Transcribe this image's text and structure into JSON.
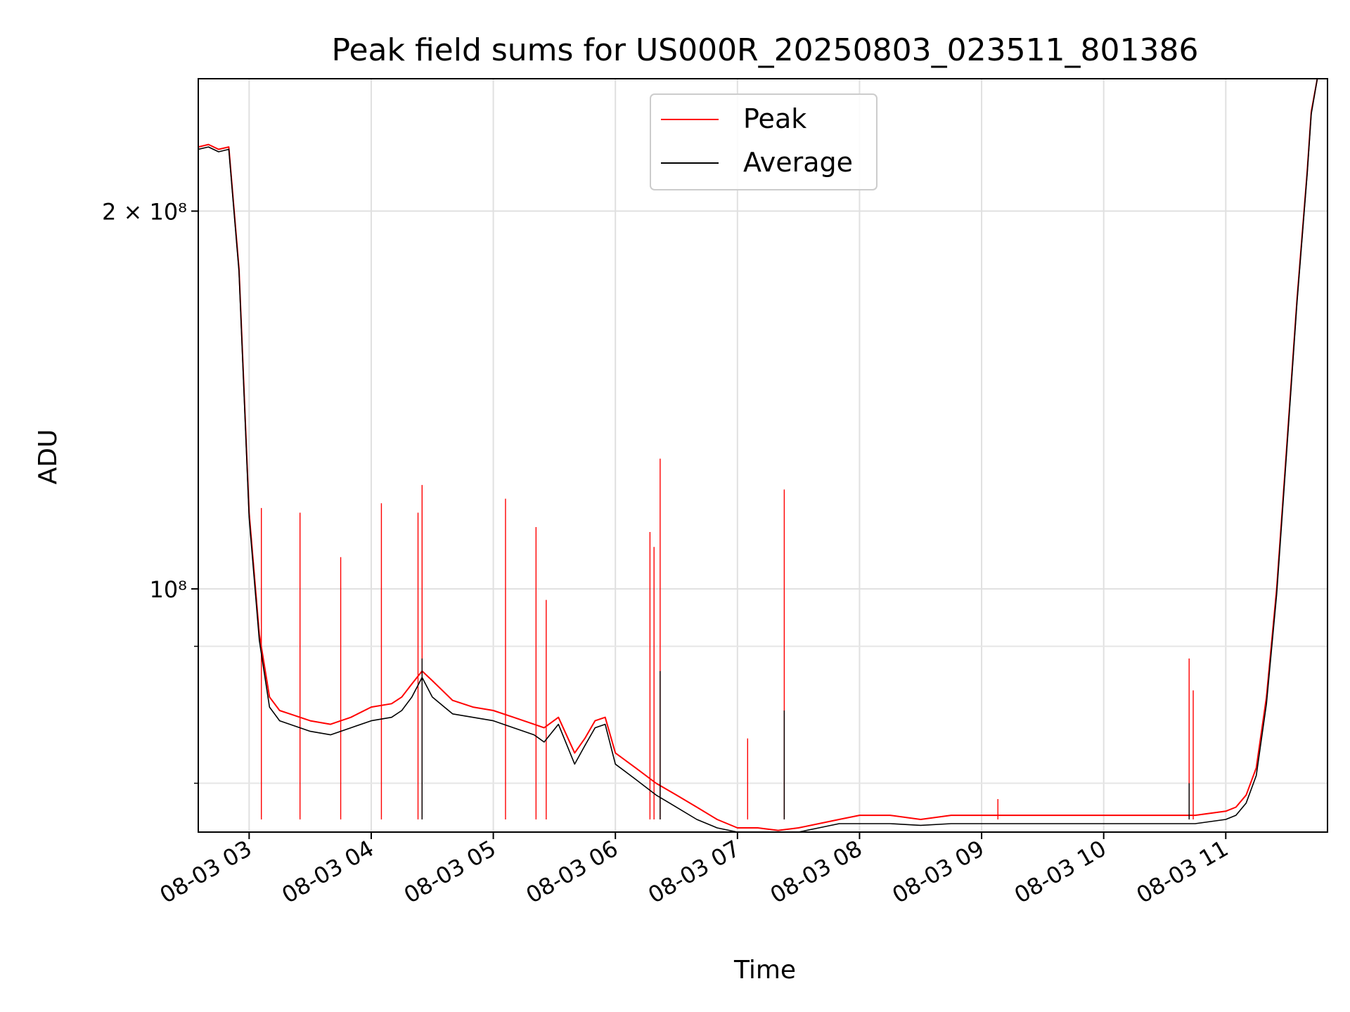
{
  "chart_data": {
    "type": "line",
    "title": "Peak field sums for US000R_20250803_023511_801386",
    "xlabel": "Time",
    "ylabel": "ADU",
    "y_scale": "log",
    "xlim": [
      "2025-08-03 02:35",
      "2025-08-03 11:50"
    ],
    "ylim": [
      64000000,
      255000000
    ],
    "x_ticks": [
      "08-03 03",
      "08-03 04",
      "08-03 05",
      "08-03 06",
      "08-03 07",
      "08-03 08",
      "08-03 09",
      "08-03 10",
      "08-03 11"
    ],
    "y_ticks": [
      "2 × 10⁸",
      "10⁸"
    ],
    "grid": true,
    "legend": {
      "placement": "top-center",
      "entries": [
        "Peak",
        "Average"
      ]
    },
    "series": [
      {
        "name": "Peak",
        "color": "#ff0000",
        "x": [
          "2025-08-03 02:35",
          "2025-08-03 02:40",
          "2025-08-03 02:45",
          "2025-08-03 02:50",
          "2025-08-03 02:55",
          "2025-08-03 03:00",
          "2025-08-03 03:05",
          "2025-08-03 03:10",
          "2025-08-03 03:15",
          "2025-08-03 03:20",
          "2025-08-03 03:30",
          "2025-08-03 03:40",
          "2025-08-03 03:50",
          "2025-08-03 04:00",
          "2025-08-03 04:10",
          "2025-08-03 04:15",
          "2025-08-03 04:20",
          "2025-08-03 04:25",
          "2025-08-03 04:30",
          "2025-08-03 04:40",
          "2025-08-03 04:50",
          "2025-08-03 05:00",
          "2025-08-03 05:10",
          "2025-08-03 05:20",
          "2025-08-03 05:25",
          "2025-08-03 05:32",
          "2025-08-03 05:40",
          "2025-08-03 05:45",
          "2025-08-03 05:50",
          "2025-08-03 05:55",
          "2025-08-03 06:00",
          "2025-08-03 06:10",
          "2025-08-03 06:20",
          "2025-08-03 06:30",
          "2025-08-03 06:40",
          "2025-08-03 06:50",
          "2025-08-03 07:00",
          "2025-08-03 07:10",
          "2025-08-03 07:20",
          "2025-08-03 07:30",
          "2025-08-03 07:40",
          "2025-08-03 07:50",
          "2025-08-03 08:00",
          "2025-08-03 08:15",
          "2025-08-03 08:30",
          "2025-08-03 08:45",
          "2025-08-03 09:00",
          "2025-08-03 09:15",
          "2025-08-03 09:30",
          "2025-08-03 09:45",
          "2025-08-03 10:00",
          "2025-08-03 10:15",
          "2025-08-03 10:30",
          "2025-08-03 10:45",
          "2025-08-03 11:00",
          "2025-08-03 11:05",
          "2025-08-03 11:10",
          "2025-08-03 11:15",
          "2025-08-03 11:20",
          "2025-08-03 11:25",
          "2025-08-03 11:30",
          "2025-08-03 11:35",
          "2025-08-03 11:40",
          "2025-08-03 11:42",
          "2025-08-03 11:45",
          "2025-08-03 11:50"
        ],
        "y": [
          225000000,
          226000000,
          224000000,
          225000000,
          180000000,
          115000000,
          92000000,
          82000000,
          80000000,
          79500000,
          78500000,
          78000000,
          79000000,
          80500000,
          81000000,
          82000000,
          84000000,
          86000000,
          84500000,
          81500000,
          80500000,
          80000000,
          79000000,
          78000000,
          77500000,
          79000000,
          74000000,
          76000000,
          78500000,
          79000000,
          74000000,
          72000000,
          70000000,
          68500000,
          67000000,
          65500000,
          64500000,
          64500000,
          64200000,
          64500000,
          65000000,
          65500000,
          66000000,
          66000000,
          65500000,
          66000000,
          66000000,
          66000000,
          66000000,
          66000000,
          66000000,
          66000000,
          66000000,
          66000000,
          66500000,
          67000000,
          68500000,
          72000000,
          82000000,
          100000000,
          130000000,
          170000000,
          215000000,
          240000000,
          255000000,
          255000000
        ],
        "spikes": [
          {
            "x": "2025-08-03 03:06",
            "y": 116000000
          },
          {
            "x": "2025-08-03 03:25",
            "y": 115000000
          },
          {
            "x": "2025-08-03 03:45",
            "y": 106000000
          },
          {
            "x": "2025-08-03 04:05",
            "y": 117000000
          },
          {
            "x": "2025-08-03 04:23",
            "y": 115000000
          },
          {
            "x": "2025-08-03 04:25",
            "y": 121000000
          },
          {
            "x": "2025-08-03 05:06",
            "y": 118000000
          },
          {
            "x": "2025-08-03 05:21",
            "y": 112000000
          },
          {
            "x": "2025-08-03 05:26",
            "y": 98000000
          },
          {
            "x": "2025-08-03 06:17",
            "y": 111000000
          },
          {
            "x": "2025-08-03 06:19",
            "y": 108000000
          },
          {
            "x": "2025-08-03 06:22",
            "y": 127000000
          },
          {
            "x": "2025-08-03 07:23",
            "y": 120000000
          },
          {
            "x": "2025-08-03 07:05",
            "y": 76000000
          },
          {
            "x": "2025-08-03 09:08",
            "y": 68000000
          },
          {
            "x": "2025-08-03 10:42",
            "y": 88000000
          },
          {
            "x": "2025-08-03 10:44",
            "y": 83000000
          }
        ]
      },
      {
        "name": "Average",
        "color": "#000000",
        "x": [
          "2025-08-03 02:35",
          "2025-08-03 02:40",
          "2025-08-03 02:45",
          "2025-08-03 02:50",
          "2025-08-03 02:55",
          "2025-08-03 03:00",
          "2025-08-03 03:05",
          "2025-08-03 03:10",
          "2025-08-03 03:15",
          "2025-08-03 03:20",
          "2025-08-03 03:30",
          "2025-08-03 03:40",
          "2025-08-03 03:50",
          "2025-08-03 04:00",
          "2025-08-03 04:10",
          "2025-08-03 04:15",
          "2025-08-03 04:20",
          "2025-08-03 04:25",
          "2025-08-03 04:30",
          "2025-08-03 04:40",
          "2025-08-03 04:50",
          "2025-08-03 05:00",
          "2025-08-03 05:10",
          "2025-08-03 05:20",
          "2025-08-03 05:25",
          "2025-08-03 05:32",
          "2025-08-03 05:40",
          "2025-08-03 05:45",
          "2025-08-03 05:50",
          "2025-08-03 05:55",
          "2025-08-03 06:00",
          "2025-08-03 06:10",
          "2025-08-03 06:20",
          "2025-08-03 06:30",
          "2025-08-03 06:40",
          "2025-08-03 06:50",
          "2025-08-03 07:00",
          "2025-08-03 07:10",
          "2025-08-03 07:20",
          "2025-08-03 07:30",
          "2025-08-03 07:40",
          "2025-08-03 07:50",
          "2025-08-03 08:00",
          "2025-08-03 08:15",
          "2025-08-03 08:30",
          "2025-08-03 08:45",
          "2025-08-03 09:00",
          "2025-08-03 09:15",
          "2025-08-03 09:30",
          "2025-08-03 09:45",
          "2025-08-03 10:00",
          "2025-08-03 10:15",
          "2025-08-03 10:30",
          "2025-08-03 10:45",
          "2025-08-03 11:00",
          "2025-08-03 11:05",
          "2025-08-03 11:10",
          "2025-08-03 11:15",
          "2025-08-03 11:20",
          "2025-08-03 11:25",
          "2025-08-03 11:30",
          "2025-08-03 11:35",
          "2025-08-03 11:40",
          "2025-08-03 11:42",
          "2025-08-03 11:45",
          "2025-08-03 11:50"
        ],
        "y": [
          224000000,
          225000000,
          223000000,
          224000000,
          179000000,
          114000000,
          91000000,
          80500000,
          78500000,
          78000000,
          77000000,
          76500000,
          77500000,
          78500000,
          79000000,
          80000000,
          82000000,
          85000000,
          82000000,
          79500000,
          79000000,
          78500000,
          77500000,
          76500000,
          75500000,
          78000000,
          72500000,
          75000000,
          77500000,
          78000000,
          72500000,
          70500000,
          68500000,
          67000000,
          65500000,
          64500000,
          64000000,
          64000000,
          63800000,
          64000000,
          64500000,
          65000000,
          65000000,
          65000000,
          64800000,
          65000000,
          65000000,
          65000000,
          65000000,
          65000000,
          65000000,
          65000000,
          65000000,
          65000000,
          65500000,
          66000000,
          67500000,
          71000000,
          81000000,
          99000000,
          129000000,
          169000000,
          214000000,
          239000000,
          255000000,
          255000000
        ],
        "spikes": [
          {
            "x": "2025-08-03 04:25",
            "y": 88000000
          },
          {
            "x": "2025-08-03 06:22",
            "y": 86000000
          },
          {
            "x": "2025-08-03 07:23",
            "y": 80000000
          },
          {
            "x": "2025-08-03 10:42",
            "y": 70000000
          }
        ]
      }
    ]
  }
}
